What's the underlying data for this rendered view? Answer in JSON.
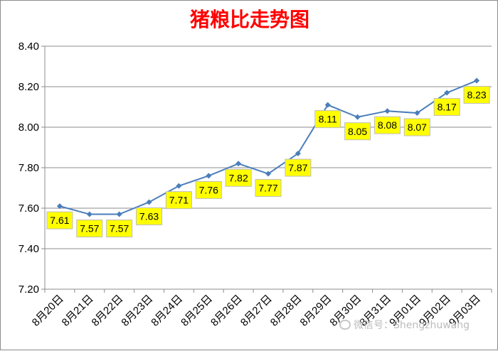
{
  "chart_data": {
    "type": "line",
    "title": "猪粮比走势图",
    "xlabel": "",
    "ylabel": "",
    "categories": [
      "8月20日",
      "8月21日",
      "8月22日",
      "8月23日",
      "8月24日",
      "8月25日",
      "8月26日",
      "8月27日",
      "8月28日",
      "8月29日",
      "8月30日",
      "8月31日",
      "9月01日",
      "9月02日",
      "9月03日"
    ],
    "series": [
      {
        "values": [
          7.61,
          7.57,
          7.57,
          7.63,
          7.71,
          7.76,
          7.82,
          7.77,
          7.87,
          8.11,
          8.05,
          8.08,
          8.07,
          8.17,
          8.23
        ]
      }
    ],
    "ylim": [
      7.2,
      8.4
    ],
    "yticks": [
      7.2,
      7.4,
      7.6,
      7.8,
      8.0,
      8.2,
      8.4
    ],
    "ytick_labels": [
      "7.20",
      "7.40",
      "7.60",
      "7.80",
      "8.00",
      "8.20",
      "8.40"
    ],
    "data_labels": [
      "7.61",
      "7.57",
      "7.57",
      "7.63",
      "7.71",
      "7.76",
      "7.82",
      "7.77",
      "7.87",
      "8.11",
      "8.05",
      "8.08",
      "8.07",
      "8.17",
      "8.23"
    ],
    "grid": true,
    "legend": "none",
    "colors": {
      "title": "#ff0000",
      "line": "#4a7ebb",
      "label_bg": "#ffff00",
      "label_border": "#bdbdbd",
      "grid": "#8c8c8c",
      "axis_text": "#000000"
    }
  },
  "watermark": {
    "icon": "wechat-icon",
    "text": "微信号：Shengzhuwang"
  }
}
